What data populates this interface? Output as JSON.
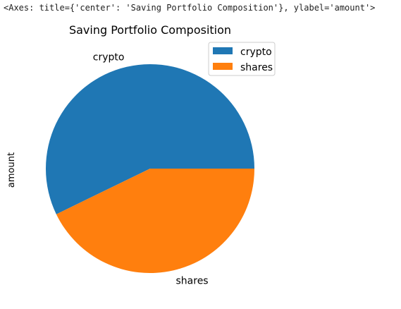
{
  "output_repr": "<Axes: title={'center': 'Saving Portfolio Composition'}, ylabel='amount'>",
  "chart_data": {
    "type": "pie",
    "title": "Saving Portfolio Composition",
    "ylabel": "amount",
    "labels": [
      "crypto",
      "shares"
    ],
    "values": [
      57.2,
      42.8
    ],
    "colors": [
      "#1f77b4",
      "#ff7f0e"
    ],
    "start_angle_deg": 0,
    "direction": "counterclockwise",
    "legend": {
      "entries": [
        "crypto",
        "shares"
      ],
      "placement": "top-right"
    }
  }
}
